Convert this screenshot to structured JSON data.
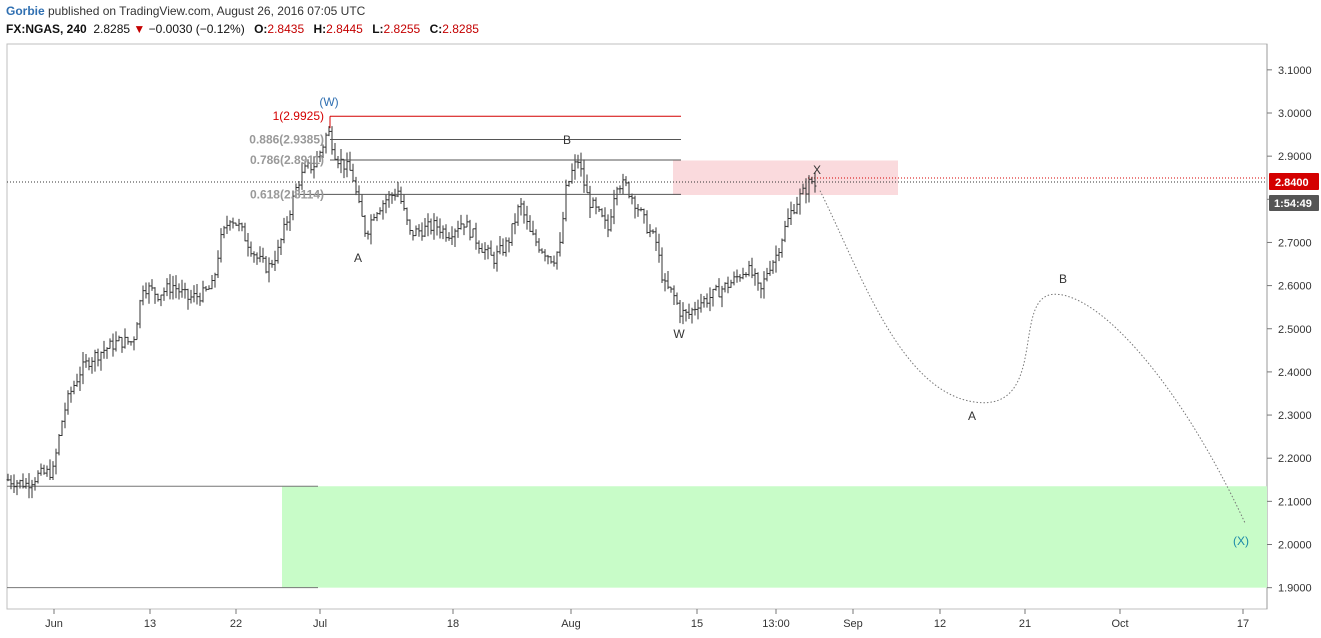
{
  "header": {
    "user": "Gorbie",
    "published": " published on TradingView.com, August 26, 2016 07:05 UTC",
    "symbol": "FX:NGAS, 240",
    "last": "2.8285",
    "arrow": "▼",
    "change": "−0.0030 (−0.12%)",
    "open_label": "O:",
    "open": "2.8435",
    "high_label": "H:",
    "high": "2.8445",
    "low_label": "L:",
    "low": "2.8255",
    "close_label": "C:",
    "close": "2.8285"
  },
  "colors": {
    "up_down_bars": "#333333",
    "fib_top": "#d40000",
    "fib_line": "#555555",
    "resistance_zone": "#fadadd",
    "target_zone": "#c8fcc8",
    "wave_label_blue": "#2f6fb1",
    "wave_label_teal": "#1b8aa8",
    "price_badge": "#d40000",
    "timer_badge": "#555555"
  },
  "chart_data": {
    "type": "ohlc",
    "y_ticks": [
      "3.1000",
      "3.0000",
      "2.9000",
      "2.8000",
      "2.7000",
      "2.6000",
      "2.5000",
      "2.4000",
      "2.3000",
      "2.2000",
      "2.1000",
      "2.0000",
      "1.9000"
    ],
    "ylim": [
      1.87,
      3.16
    ],
    "x_ticks": [
      "Jun",
      "13",
      "22",
      "Jul",
      "18",
      "Aug",
      "15",
      "13:00",
      "Sep",
      "12",
      "21",
      "Oct",
      "17"
    ],
    "price_badge": "2.8400",
    "timer_badge": "1:54:49",
    "fib_levels": [
      {
        "ratio": "1",
        "label": "1(2.9925)",
        "value": 2.9925
      },
      {
        "ratio": "0.886",
        "label": "0.886(2.9385)",
        "value": 2.9385
      },
      {
        "ratio": "0.786",
        "label": "0.786(2.8911)",
        "value": 2.8911
      },
      {
        "ratio": "0.618",
        "label": "0.618(2.8114)",
        "value": 2.8114
      }
    ],
    "current_price_line": 2.84,
    "resistance_zone": {
      "low": 2.81,
      "high": 2.89
    },
    "target_zone": {
      "low": 1.9,
      "high": 2.135
    },
    "support_lines": [
      2.135,
      1.9
    ],
    "wave_labels": [
      {
        "text": "(W)",
        "color": "blue"
      },
      {
        "text": "A",
        "color": "dark"
      },
      {
        "text": "B",
        "color": "dark"
      },
      {
        "text": "W",
        "color": "dark"
      },
      {
        "text": "X",
        "color": "dark"
      },
      {
        "text": "A",
        "color": "dark"
      },
      {
        "text": "B",
        "color": "dark"
      },
      {
        "text": "(X)",
        "color": "teal"
      }
    ],
    "projected_path": [
      {
        "label": "start",
        "value": 2.82
      },
      {
        "label": "A",
        "value": 2.33
      },
      {
        "label": "B",
        "value": 2.58
      },
      {
        "label": "(X)",
        "value": 2.05
      }
    ],
    "price_anchors": [
      [
        0,
        2.15
      ],
      [
        18,
        2.14
      ],
      [
        30,
        2.16
      ],
      [
        45,
        2.17
      ],
      [
        55,
        2.3
      ],
      [
        62,
        2.35
      ],
      [
        72,
        2.4
      ],
      [
        82,
        2.43
      ],
      [
        95,
        2.45
      ],
      [
        110,
        2.47
      ],
      [
        125,
        2.47
      ],
      [
        135,
        2.6
      ],
      [
        150,
        2.58
      ],
      [
        165,
        2.6
      ],
      [
        180,
        2.57
      ],
      [
        195,
        2.58
      ],
      [
        205,
        2.6
      ],
      [
        212,
        2.7
      ],
      [
        222,
        2.76
      ],
      [
        230,
        2.74
      ],
      [
        240,
        2.7
      ],
      [
        250,
        2.66
      ],
      [
        260,
        2.64
      ],
      [
        270,
        2.68
      ],
      [
        280,
        2.76
      ],
      [
        290,
        2.84
      ],
      [
        298,
        2.87
      ],
      [
        306,
        2.88
      ],
      [
        314,
        2.92
      ],
      [
        320,
        2.96
      ],
      [
        328,
        2.9
      ],
      [
        336,
        2.88
      ],
      [
        344,
        2.86
      ],
      [
        350,
        2.79
      ],
      [
        358,
        2.72
      ],
      [
        366,
        2.77
      ],
      [
        378,
        2.8
      ],
      [
        390,
        2.82
      ],
      [
        402,
        2.72
      ],
      [
        415,
        2.73
      ],
      [
        428,
        2.74
      ],
      [
        440,
        2.72
      ],
      [
        455,
        2.75
      ],
      [
        470,
        2.7
      ],
      [
        485,
        2.66
      ],
      [
        500,
        2.7
      ],
      [
        512,
        2.79
      ],
      [
        522,
        2.72
      ],
      [
        532,
        2.69
      ],
      [
        545,
        2.66
      ],
      [
        552,
        2.69
      ],
      [
        558,
        2.82
      ],
      [
        565,
        2.87
      ],
      [
        570,
        2.89
      ],
      [
        580,
        2.8
      ],
      [
        592,
        2.76
      ],
      [
        600,
        2.73
      ],
      [
        608,
        2.84
      ],
      [
        618,
        2.83
      ],
      [
        628,
        2.79
      ],
      [
        638,
        2.74
      ],
      [
        648,
        2.7
      ],
      [
        656,
        2.6
      ],
      [
        665,
        2.58
      ],
      [
        672,
        2.54
      ],
      [
        680,
        2.53
      ],
      [
        690,
        2.56
      ],
      [
        700,
        2.57
      ],
      [
        712,
        2.59
      ],
      [
        725,
        2.61
      ],
      [
        738,
        2.64
      ],
      [
        746,
        2.62
      ],
      [
        752,
        2.58
      ],
      [
        760,
        2.64
      ],
      [
        768,
        2.67
      ],
      [
        775,
        2.72
      ],
      [
        783,
        2.77
      ],
      [
        790,
        2.8
      ],
      [
        797,
        2.82
      ],
      [
        803,
        2.845
      ],
      [
        808,
        2.83
      ]
    ]
  }
}
